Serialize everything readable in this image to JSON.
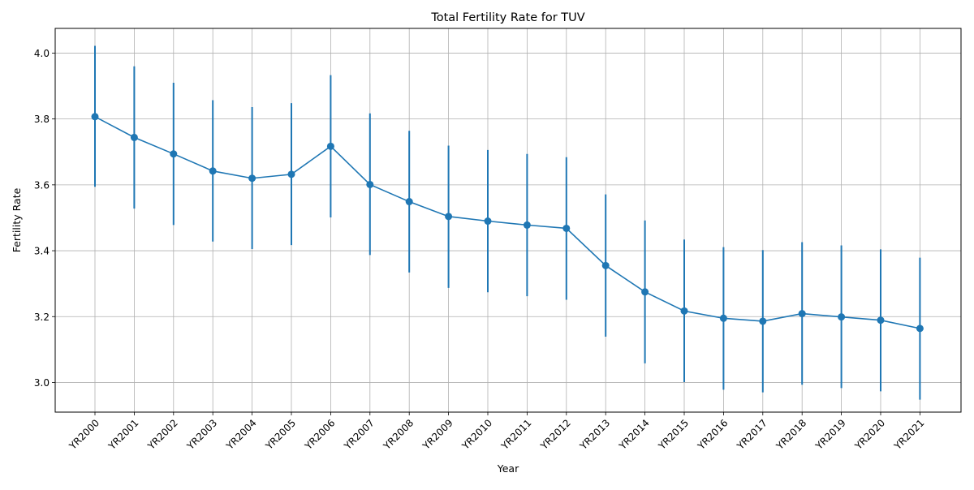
{
  "chart_data": {
    "type": "line",
    "title": "Total Fertility Rate for TUV",
    "xlabel": "Year",
    "ylabel": "Fertility Rate",
    "ylim": [
      2.91,
      4.075
    ],
    "yticks": [
      3.0,
      3.2,
      3.4,
      3.6,
      3.8,
      4.0
    ],
    "ytick_labels": [
      "3.0",
      "3.2",
      "3.4",
      "3.6",
      "3.8",
      "4.0"
    ],
    "grid": true,
    "legend": "none",
    "categories": [
      "YR2000",
      "YR2001",
      "YR2002",
      "YR2003",
      "YR2004",
      "YR2005",
      "YR2006",
      "YR2007",
      "YR2008",
      "YR2009",
      "YR2010",
      "YR2011",
      "YR2012",
      "YR2013",
      "YR2014",
      "YR2015",
      "YR2016",
      "YR2017",
      "YR2018",
      "YR2019",
      "YR2020",
      "YR2021"
    ],
    "series": [
      {
        "color": "#1f77b4",
        "marker": "circle",
        "values": [
          3.807,
          3.744,
          3.694,
          3.642,
          3.62,
          3.632,
          3.717,
          3.601,
          3.549,
          3.504,
          3.49,
          3.478,
          3.468,
          3.355,
          3.275,
          3.217,
          3.195,
          3.186,
          3.209,
          3.199,
          3.189,
          3.164
        ],
        "error_low": [
          3.594,
          3.528,
          3.478,
          3.428,
          3.405,
          3.417,
          3.501,
          3.387,
          3.334,
          3.287,
          3.274,
          3.262,
          3.251,
          3.139,
          3.058,
          3.001,
          2.978,
          2.97,
          2.993,
          2.983,
          2.973,
          2.948
        ],
        "error_high": [
          4.022,
          3.96,
          3.91,
          3.857,
          3.836,
          3.848,
          3.933,
          3.817,
          3.764,
          3.719,
          3.706,
          3.694,
          3.684,
          3.571,
          3.492,
          3.434,
          3.411,
          3.402,
          3.426,
          3.416,
          3.404,
          3.379
        ]
      }
    ]
  }
}
